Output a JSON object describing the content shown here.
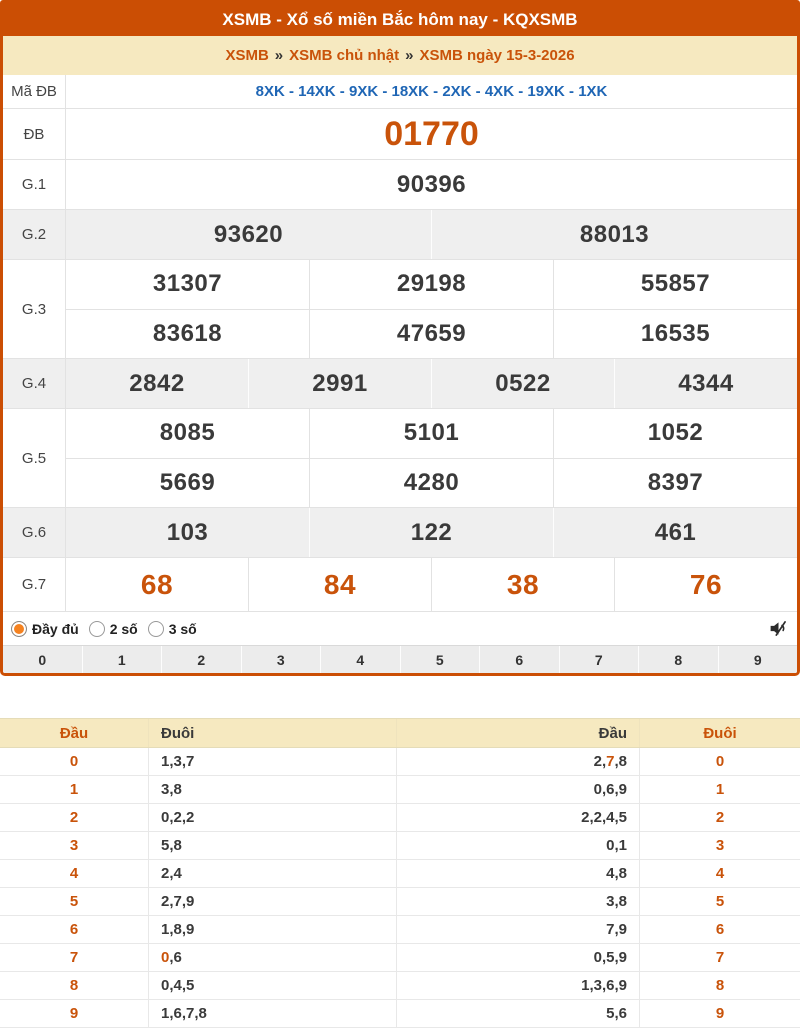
{
  "colors": {
    "header_bg": "#cb4e04",
    "cream_bg": "#f6e9c0",
    "gray_row_bg": "#efefef",
    "accent_orange": "#c9530a",
    "code_blue": "#1f66b5",
    "dark_text": "#3a3a3a"
  },
  "title": "XSMB - Xổ số miền Bắc hôm nay - KQXSMB",
  "breadcrumb": {
    "separator": "»",
    "items": [
      "XSMB",
      "XSMB chủ nhật",
      "XSMB ngày 15-3-2026"
    ]
  },
  "results": {
    "ma_db": {
      "label": "Mã ĐB",
      "value": "8XK - 14XK - 9XK - 18XK - 2XK - 4XK - 19XK - 1XK"
    },
    "db": {
      "label": "ĐB",
      "value": "01770"
    },
    "g1": {
      "label": "G.1",
      "values": [
        "90396"
      ]
    },
    "g2": {
      "label": "G.2",
      "values": [
        "93620",
        "88013"
      ]
    },
    "g3": {
      "label": "G.3",
      "rows": [
        [
          "31307",
          "29198",
          "55857"
        ],
        [
          "83618",
          "47659",
          "16535"
        ]
      ]
    },
    "g4": {
      "label": "G.4",
      "values": [
        "2842",
        "2991",
        "0522",
        "4344"
      ]
    },
    "g5": {
      "label": "G.5",
      "rows": [
        [
          "8085",
          "5101",
          "1052"
        ],
        [
          "5669",
          "4280",
          "8397"
        ]
      ]
    },
    "g6": {
      "label": "G.6",
      "values": [
        "103",
        "122",
        "461"
      ]
    },
    "g7": {
      "label": "G.7",
      "values": [
        "68",
        "84",
        "38",
        "76"
      ]
    }
  },
  "options": {
    "radios": [
      {
        "label": "Đầy đủ",
        "selected": true
      },
      {
        "label": "2 số",
        "selected": false
      },
      {
        "label": "3 số",
        "selected": false
      }
    ],
    "mute_icon": "speaker-muted-icon"
  },
  "digit_strip": [
    "0",
    "1",
    "2",
    "3",
    "4",
    "5",
    "6",
    "7",
    "8",
    "9"
  ],
  "tails_table": {
    "headers": [
      "Đầu",
      "Đuôi",
      "Đầu",
      "Đuôi"
    ],
    "rows": [
      {
        "head": "0",
        "tails": [
          {
            "t": "1,3,7"
          }
        ],
        "heads": [
          {
            "t": "2,"
          },
          {
            "t": "7",
            "hl": true
          },
          {
            "t": ",8"
          }
        ],
        "tail": "0"
      },
      {
        "head": "1",
        "tails": [
          {
            "t": "3,8"
          }
        ],
        "heads": [
          {
            "t": "0,6,9"
          }
        ],
        "tail": "1"
      },
      {
        "head": "2",
        "tails": [
          {
            "t": "0,2,2"
          }
        ],
        "heads": [
          {
            "t": "2,2,4,5"
          }
        ],
        "tail": "2"
      },
      {
        "head": "3",
        "tails": [
          {
            "t": "5,8"
          }
        ],
        "heads": [
          {
            "t": "0,1"
          }
        ],
        "tail": "3"
      },
      {
        "head": "4",
        "tails": [
          {
            "t": "2,4"
          }
        ],
        "heads": [
          {
            "t": "4,8"
          }
        ],
        "tail": "4"
      },
      {
        "head": "5",
        "tails": [
          {
            "t": "2,7,9"
          }
        ],
        "heads": [
          {
            "t": "3,8"
          }
        ],
        "tail": "5"
      },
      {
        "head": "6",
        "tails": [
          {
            "t": "1,8,9"
          }
        ],
        "heads": [
          {
            "t": "7,9"
          }
        ],
        "tail": "6"
      },
      {
        "head": "7",
        "tails": [
          {
            "t": "0",
            "hl": true
          },
          {
            "t": ",6"
          }
        ],
        "heads": [
          {
            "t": "0,5,9"
          }
        ],
        "tail": "7"
      },
      {
        "head": "8",
        "tails": [
          {
            "t": "0,4,5"
          }
        ],
        "heads": [
          {
            "t": "1,3,6,9"
          }
        ],
        "tail": "8"
      },
      {
        "head": "9",
        "tails": [
          {
            "t": "1,6,7,8"
          }
        ],
        "heads": [
          {
            "t": "5,6"
          }
        ],
        "tail": "9"
      }
    ]
  }
}
